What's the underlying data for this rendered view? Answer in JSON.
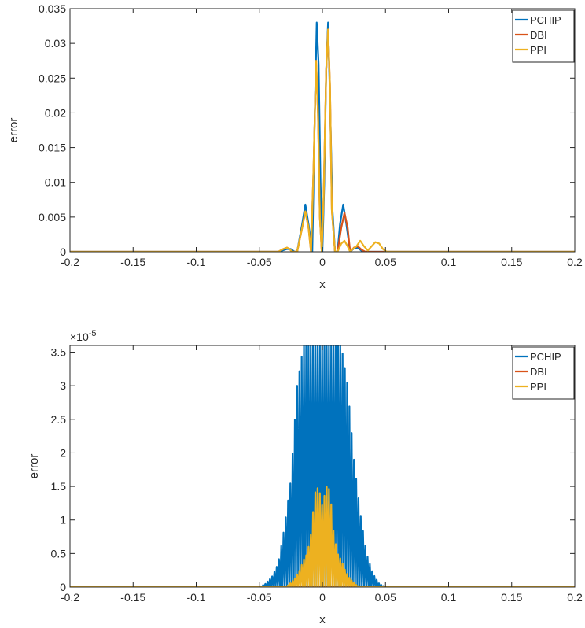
{
  "chart_data": [
    {
      "type": "line",
      "xlabel": "x",
      "ylabel": "error",
      "xlim": [
        -0.2,
        0.2
      ],
      "ylim": [
        0,
        0.035
      ],
      "xticks": [
        -0.2,
        -0.15,
        -0.1,
        -0.05,
        0,
        0.05,
        0.1,
        0.15,
        0.2
      ],
      "xtick_labels": [
        "-0.2",
        "-0.15",
        "-0.1",
        "-0.05",
        "0",
        "0.05",
        "0.1",
        "0.15",
        "0.2"
      ],
      "yticks": [
        0,
        0.005,
        0.01,
        0.015,
        0.02,
        0.025,
        0.03,
        0.035
      ],
      "ytick_labels": [
        "0",
        "0.005",
        "0.01",
        "0.015",
        "0.02",
        "0.025",
        "0.03",
        "0.035"
      ],
      "exponent_label": "",
      "legend_position": "top-right",
      "series": [
        {
          "name": "PCHIP",
          "color": "#0072BD",
          "x": [
            -0.2,
            -0.05,
            -0.035,
            -0.028,
            -0.025,
            -0.022,
            -0.02,
            -0.016,
            -0.0135,
            -0.011,
            -0.008,
            -0.006,
            -0.0045,
            -0.003,
            -0.0015,
            0,
            0.0015,
            0.003,
            0.0045,
            0.006,
            0.008,
            0.01,
            0.012,
            0.014,
            0.0165,
            0.019,
            0.022,
            0.025,
            0.028,
            0.032,
            0.04,
            0.2
          ],
          "y": [
            0,
            0,
            0,
            0.0004,
            0.0004,
            0,
            0,
            0.004,
            0.0068,
            0.004,
            0,
            0.02,
            0.033,
            0.027,
            0.01,
            0,
            0.01,
            0.026,
            0.033,
            0.022,
            0.006,
            0,
            0,
            0.004,
            0.0068,
            0.004,
            0,
            0.0005,
            0.0006,
            0,
            0,
            0
          ]
        },
        {
          "name": "DBI",
          "color": "#D95319",
          "x": [
            -0.2,
            -0.035,
            -0.031,
            -0.028,
            -0.026,
            -0.024,
            -0.02,
            -0.016,
            -0.0135,
            -0.011,
            -0.009,
            -0.007,
            -0.005,
            -0.0035,
            -0.002,
            -0.0005,
            0.001,
            0.003,
            0.0045,
            0.006,
            0.0075,
            0.01,
            0.012,
            0.015,
            0.0175,
            0.02,
            0.022,
            0.025,
            0.028,
            0.031,
            0.034,
            0.2
          ],
          "y": [
            0,
            0,
            0.0004,
            0.0006,
            0.0004,
            0,
            0,
            0.0035,
            0.0058,
            0.0035,
            0,
            0.012,
            0.0275,
            0.02,
            0.005,
            0,
            0.008,
            0.026,
            0.032,
            0.024,
            0.006,
            0,
            0,
            0.0035,
            0.0056,
            0.0035,
            0,
            0.0006,
            0.0008,
            0.0003,
            0,
            0
          ]
        },
        {
          "name": "PPI",
          "color": "#EDB120",
          "x": [
            -0.2,
            -0.035,
            -0.031,
            -0.028,
            -0.026,
            -0.024,
            -0.02,
            -0.016,
            -0.0135,
            -0.011,
            -0.009,
            -0.007,
            -0.005,
            -0.0035,
            -0.002,
            -0.0005,
            0.001,
            0.003,
            0.0045,
            0.006,
            0.0075,
            0.01,
            0.012,
            0.015,
            0.0175,
            0.02,
            0.022,
            0.024,
            0.027,
            0.03,
            0.033,
            0.036,
            0.039,
            0.042,
            0.045,
            0.048,
            0.051,
            0.2
          ],
          "y": [
            0,
            0,
            0.0004,
            0.0006,
            0.0004,
            0,
            0,
            0.0035,
            0.0058,
            0.0035,
            0,
            0.012,
            0.0275,
            0.02,
            0.005,
            0,
            0.008,
            0.026,
            0.032,
            0.024,
            0.006,
            0,
            0,
            0.0012,
            0.0016,
            0.0008,
            0,
            0.0004,
            0.0008,
            0.0016,
            0.0008,
            0.0002,
            0.0008,
            0.0014,
            0.0012,
            0.0004,
            0,
            0
          ]
        }
      ]
    },
    {
      "type": "line",
      "xlabel": "x",
      "ylabel": "error",
      "xlim": [
        -0.2,
        0.2
      ],
      "ylim": [
        0,
        3.6
      ],
      "xticks": [
        -0.2,
        -0.15,
        -0.1,
        -0.05,
        0,
        0.05,
        0.1,
        0.15,
        0.2
      ],
      "xtick_labels": [
        "-0.2",
        "-0.15",
        "-0.1",
        "-0.05",
        "0",
        "0.05",
        "0.1",
        "0.15",
        "0.2"
      ],
      "yticks": [
        0,
        0.5,
        1,
        1.5,
        2,
        2.5,
        3,
        3.5
      ],
      "ytick_labels": [
        "0",
        "0.5",
        "1",
        "1.5",
        "2",
        "2.5",
        "3",
        "3.5"
      ],
      "exponent_label": "×10",
      "exponent_power": "-5",
      "legend_position": "top-right",
      "series": [
        {
          "name": "PCHIP",
          "color": "#0072BD",
          "oscillating": true,
          "x": [
            -0.2,
            -0.05,
            -0.045,
            -0.04,
            -0.035,
            -0.03,
            -0.025,
            -0.02,
            -0.015,
            -0.01,
            -0.005,
            0,
            0.005,
            0.01,
            0.015,
            0.02,
            0.025,
            0.03,
            0.035,
            0.04,
            0.045,
            0.05,
            0.2
          ],
          "y": [
            0,
            0,
            0.05,
            0.15,
            0.35,
            0.9,
            1.6,
            3.0,
            3.6,
            3.6,
            3.6,
            3.6,
            3.6,
            3.6,
            3.6,
            3.0,
            1.9,
            1.1,
            0.5,
            0.2,
            0.05,
            0,
            0
          ]
        },
        {
          "name": "DBI",
          "color": "#D95319",
          "oscillating": false,
          "x": [
            -0.2,
            0.2
          ],
          "y": [
            0,
            0
          ]
        },
        {
          "name": "PPI",
          "color": "#EDB120",
          "oscillating": true,
          "x": [
            -0.2,
            -0.03,
            -0.027,
            -0.024,
            -0.021,
            -0.018,
            -0.015,
            -0.012,
            -0.009,
            -0.006,
            -0.003,
            0,
            0.003,
            0.006,
            0.009,
            0.012,
            0.015,
            0.018,
            0.021,
            0.024,
            0.027,
            0.03,
            0.2
          ],
          "y": [
            0,
            0,
            0.03,
            0.08,
            0.15,
            0.25,
            0.4,
            0.5,
            0.8,
            1.4,
            1.5,
            1.2,
            1.5,
            1.45,
            0.8,
            0.5,
            0.4,
            0.25,
            0.15,
            0.08,
            0.03,
            0,
            0
          ]
        }
      ]
    }
  ]
}
